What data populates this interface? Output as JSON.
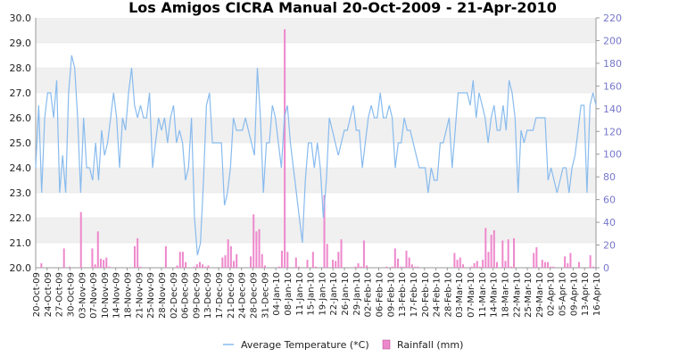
{
  "chart_data": {
    "type": "line+bar",
    "title": "Los Amigos CICRA Manual  20-Oct-2009 - 21-Apr-2010",
    "left_axis": {
      "min": 20,
      "max": 30,
      "ticks": [
        "20.0",
        "21.0",
        "22.0",
        "23.0",
        "24.0",
        "25.0",
        "26.0",
        "27.0",
        "28.0",
        "29.0",
        "30.0"
      ]
    },
    "right_axis": {
      "min": 0,
      "max": 220,
      "ticks": [
        "0",
        "20",
        "40",
        "60",
        "80",
        "100",
        "120",
        "140",
        "160",
        "180",
        "200",
        "220"
      ]
    },
    "x_tick_labels": [
      "20-Oct-09",
      "24-Oct-09",
      "27-Oct-09",
      "30-Oct-09",
      "03-Nov-09",
      "07-Nov-09",
      "10-Nov-09",
      "14-Nov-09",
      "18-Nov-09",
      "21-Nov-09",
      "25-Nov-09",
      "28-Nov-09",
      "02-Dec-09",
      "06-Dec-09",
      "09-Dec-09",
      "13-Dec-09",
      "17-Dec-09",
      "21-Dec-09",
      "24-Dec-09",
      "28-Dec-09",
      "31-Dec-09",
      "04-Jan-10",
      "08-Jan-10",
      "11-Jan-10",
      "15-Jan-10",
      "19-Jan-10",
      "22-Jan-10",
      "26-Jan-10",
      "29-Jan-10",
      "02-Feb-10",
      "06-Feb-10",
      "09-Feb-10",
      "13-Feb-10",
      "17-Feb-10",
      "20-Feb-10",
      "24-Feb-10",
      "28-Feb-10",
      "03-Mar-10",
      "07-Mar-10",
      "11-Mar-10",
      "14-Mar-10",
      "18-Mar-10",
      "22-Mar-10",
      "25-Mar-10",
      "29-Mar-10",
      "02-Apr-10",
      "05-Apr-10",
      "09-Apr-10",
      "13-Apr-10",
      "16-Apr-10"
    ],
    "grid": "horizontal-bands",
    "legend_position": "bottom",
    "series": [
      {
        "name": "Average Temperature (*C)",
        "axis": "left",
        "color": "#88bbee",
        "values": [
          24.0,
          26.5,
          23.0,
          26.0,
          27.0,
          27.0,
          26.0,
          27.5,
          23.0,
          24.5,
          23.0,
          27.0,
          28.5,
          28.0,
          26.0,
          23.0,
          26.0,
          24.0,
          24.0,
          23.5,
          25.0,
          23.5,
          25.5,
          24.5,
          25.0,
          26.0,
          27.0,
          26.0,
          24.0,
          26.0,
          25.5,
          27.0,
          28.0,
          26.5,
          26.0,
          26.5,
          26.0,
          26.0,
          27.0,
          24.0,
          25.0,
          26.0,
          25.5,
          26.0,
          25.0,
          26.0,
          26.5,
          25.0,
          25.5,
          25.0,
          23.5,
          24.0,
          26.0,
          22.0,
          20.5,
          21.0,
          23.5,
          26.5,
          27.0,
          25.0,
          25.0,
          25.0,
          25.0,
          22.5,
          23.0,
          24.0,
          26.0,
          25.5,
          25.5,
          25.5,
          26.0,
          25.5,
          25.0,
          24.5,
          28.0,
          26.0,
          23.0,
          25.0,
          25.0,
          26.5,
          26.0,
          25.0,
          24.0,
          26.0,
          26.5,
          25.0,
          24.0,
          23.0,
          22.0,
          21.0,
          23.5,
          25.0,
          25.0,
          24.0,
          25.0,
          24.0,
          22.0,
          23.5,
          26.0,
          25.5,
          25.0,
          24.5,
          25.0,
          25.5,
          25.5,
          26.0,
          26.5,
          25.5,
          25.5,
          24.0,
          25.0,
          26.0,
          26.5,
          26.0,
          26.0,
          27.0,
          26.0,
          26.0,
          26.5,
          26.0,
          24.0,
          25.0,
          25.0,
          26.0,
          25.5,
          25.5,
          25.0,
          24.5,
          24.0,
          24.0,
          24.0,
          23.0,
          24.0,
          23.5,
          23.5,
          25.0,
          25.0,
          25.5,
          26.0,
          24.0,
          25.5,
          27.0,
          27.0,
          27.0,
          27.0,
          26.5,
          27.5,
          26.0,
          27.0,
          26.5,
          26.0,
          25.0,
          26.0,
          26.5,
          25.5,
          25.5,
          26.5,
          25.5,
          27.5,
          27.0,
          26.0,
          23.0,
          25.5,
          25.0,
          25.5,
          25.5,
          25.5,
          26.0,
          26.0,
          26.0,
          26.0,
          23.5,
          24.0,
          23.5,
          23.0,
          23.5,
          24.0,
          24.0,
          23.0,
          24.0,
          24.5,
          25.5,
          26.5,
          26.5,
          23.0,
          26.5,
          27.0,
          26.5
        ]
      },
      {
        "name": "Rainfall (mm)",
        "axis": "right",
        "color": "#ee88cc",
        "values": [
          0,
          0,
          4,
          0,
          0,
          0,
          0,
          0,
          0,
          0,
          17,
          0,
          1,
          0,
          0,
          0,
          49,
          0,
          0,
          0,
          17,
          3,
          32,
          8,
          7,
          9,
          1,
          0,
          0,
          0,
          0,
          0,
          0,
          0,
          0,
          19,
          26,
          1,
          0,
          0,
          0,
          0,
          0,
          0,
          0,
          0,
          19,
          0,
          0,
          0,
          2,
          14,
          14,
          5,
          0,
          0,
          1,
          3,
          5,
          3,
          1,
          2,
          0,
          0,
          0,
          0,
          9,
          11,
          25,
          19,
          6,
          12,
          0,
          0,
          0,
          0,
          10,
          47,
          32,
          34,
          12,
          2,
          0,
          0,
          0,
          0,
          1,
          15,
          210,
          14,
          0,
          0,
          9,
          1,
          0,
          0,
          7,
          0,
          14,
          1,
          0,
          0,
          64,
          21,
          0,
          7,
          6,
          14,
          25,
          0,
          0,
          0,
          0,
          1,
          4,
          1,
          24,
          2,
          0,
          0,
          0,
          0,
          0,
          0,
          1,
          0,
          1,
          17,
          8,
          1,
          1,
          15,
          9,
          3,
          1,
          1,
          0,
          0,
          0,
          0,
          0,
          0,
          0,
          0,
          0,
          0,
          0,
          0,
          13,
          7,
          9,
          3,
          0,
          0,
          1,
          4,
          6,
          1,
          7,
          35,
          14,
          29,
          33,
          5,
          0,
          24,
          6,
          25,
          1,
          26,
          0,
          0,
          0,
          0,
          0,
          0,
          13,
          18,
          0,
          7,
          5,
          5,
          1,
          1,
          0,
          0,
          0,
          10,
          4,
          13,
          0,
          0,
          5,
          0,
          0,
          0,
          11,
          1,
          0
        ]
      }
    ]
  }
}
